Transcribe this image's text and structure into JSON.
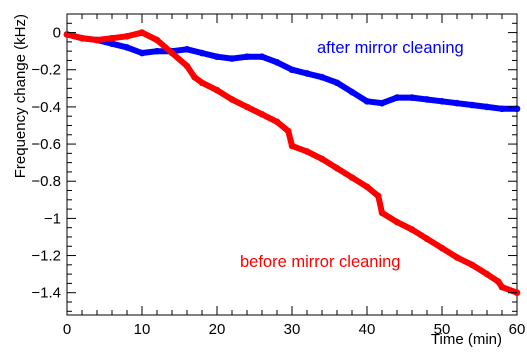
{
  "chart_data": {
    "type": "scatter",
    "xlabel": "Time (min)",
    "ylabel": "Frequency change (kHz)",
    "xlim": [
      0,
      60
    ],
    "ylim": [
      -1.52,
      0.1
    ],
    "grid": false,
    "xticks": [
      0,
      10,
      20,
      30,
      40,
      50,
      60
    ],
    "xtick_labels": [
      "0",
      "10",
      "20",
      "30",
      "40",
      "50",
      "60"
    ],
    "yticks": [
      0,
      -0.2,
      -0.4,
      -0.6,
      -0.8,
      -1,
      -1.2,
      -1.4
    ],
    "ytick_labels": [
      "0",
      "−0.2",
      "−0.4",
      "−0.6",
      "−0.8",
      "−1",
      "−1.2",
      "−1.4"
    ],
    "annotations": [
      "after mirror cleaning",
      "before mirror cleaning"
    ],
    "series": [
      {
        "name": "after mirror cleaning",
        "color": "#0000ff",
        "x": [
          0,
          2,
          4,
          6,
          8,
          10,
          12,
          14,
          16,
          18,
          20,
          22,
          24,
          26,
          28,
          30,
          32,
          34,
          36,
          38,
          40,
          42,
          44,
          46,
          48,
          50,
          52,
          54,
          56,
          58,
          60
        ],
        "y": [
          -0.01,
          -0.03,
          -0.04,
          -0.06,
          -0.08,
          -0.11,
          -0.1,
          -0.1,
          -0.09,
          -0.11,
          -0.13,
          -0.14,
          -0.13,
          -0.13,
          -0.16,
          -0.2,
          -0.22,
          -0.24,
          -0.27,
          -0.32,
          -0.37,
          -0.38,
          -0.35,
          -0.35,
          -0.36,
          -0.37,
          -0.38,
          -0.39,
          -0.4,
          -0.41,
          -0.41
        ]
      },
      {
        "name": "before mirror cleaning",
        "color": "#ff0000",
        "x": [
          0,
          2,
          4,
          6,
          8,
          10,
          12,
          14,
          16,
          17,
          18,
          20,
          22,
          24,
          26,
          28,
          29.5,
          30,
          32,
          34,
          36,
          38,
          40,
          41.5,
          42,
          44,
          46,
          48,
          50,
          52,
          54,
          56,
          57.5,
          58,
          60
        ],
        "y": [
          -0.01,
          -0.03,
          -0.04,
          -0.03,
          -0.02,
          0.0,
          -0.04,
          -0.11,
          -0.18,
          -0.24,
          -0.27,
          -0.31,
          -0.36,
          -0.4,
          -0.44,
          -0.48,
          -0.53,
          -0.61,
          -0.64,
          -0.68,
          -0.73,
          -0.78,
          -0.83,
          -0.88,
          -0.97,
          -1.02,
          -1.06,
          -1.11,
          -1.16,
          -1.21,
          -1.25,
          -1.3,
          -1.34,
          -1.37,
          -1.4
        ]
      }
    ]
  }
}
